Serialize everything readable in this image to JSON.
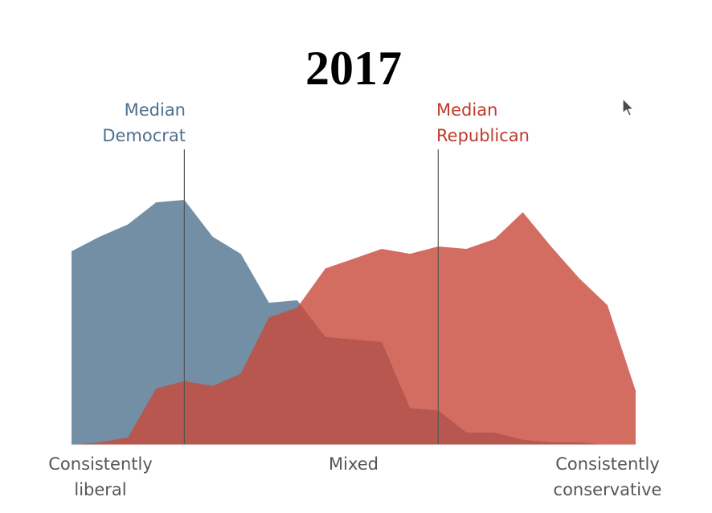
{
  "chart_data": {
    "type": "area",
    "title": "2017",
    "x_tick_labels": [
      {
        "line1": "Consistently",
        "line2": "liberal"
      },
      {
        "line1": "Mixed",
        "line2": ""
      },
      {
        "line1": "Consistently",
        "line2": "conservative"
      }
    ],
    "x": [
      0,
      1,
      2,
      3,
      4,
      5,
      6,
      7,
      8,
      9,
      10,
      11,
      12,
      13,
      14,
      15,
      16,
      17,
      18,
      19,
      20
    ],
    "xlim": [
      0,
      20
    ],
    "ylim": [
      0,
      100
    ],
    "series": [
      {
        "key": "democrat",
        "color": "#5f7f99",
        "opacity": 0.88,
        "values": [
          79,
          85,
          90,
          99,
          100,
          85,
          78,
          58,
          59,
          44,
          43,
          42,
          15,
          14,
          5,
          5,
          2,
          1,
          1,
          0,
          0
        ]
      },
      {
        "key": "republican",
        "color": "#c9483a",
        "opacity": 0.8,
        "values": [
          0,
          1,
          3,
          23,
          26,
          24,
          29,
          52,
          56,
          72,
          76,
          80,
          78,
          81,
          80,
          84,
          95,
          81,
          68,
          57,
          22
        ]
      }
    ],
    "medians": [
      {
        "key": "democrat",
        "label_line1": "Median",
        "label_line2": "Democrat",
        "x": 4,
        "color": "#4e6f8c"
      },
      {
        "key": "republican",
        "label_line1": "Median",
        "label_line2": "Republican",
        "x": 13,
        "color": "#c0392b"
      }
    ],
    "grid": false,
    "legend": "none"
  },
  "cursor": {
    "icon": "mouse-pointer-icon"
  }
}
